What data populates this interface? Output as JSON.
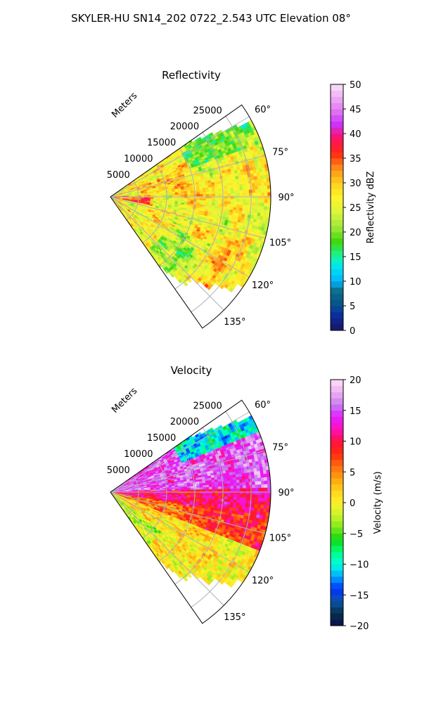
{
  "figure": {
    "suptitle": "SKYLER-HU  SN14_202  0722_2.543 UTC Elevation 08°"
  },
  "chart_data": [
    {
      "type": "heatmap",
      "subtype": "polar-sector",
      "title": "Reflectivity",
      "range_label": "Meters",
      "range_ticks": [
        "5000",
        "10000",
        "15000",
        "20000",
        "25000"
      ],
      "range_values": [
        5000,
        10000,
        15000,
        20000,
        25000
      ],
      "range_max": 28500,
      "azimuth_ticks": [
        "60°",
        "75°",
        "90°",
        "105°",
        "120°",
        "135°"
      ],
      "azimuth_values": [
        60,
        75,
        90,
        105,
        120,
        135
      ],
      "azimuth_range": [
        55,
        145
      ],
      "grid": true,
      "colorbar": {
        "label": "Reflectivity dBZ",
        "ticks": [
          "0",
          "5",
          "10",
          "15",
          "20",
          "25",
          "30",
          "35",
          "40",
          "45",
          "50"
        ],
        "range": [
          0,
          50
        ],
        "colormap": "NWSRef"
      },
      "field_description_values": {
        "mean": 28,
        "min_visible": 18,
        "max_visible": 38
      }
    },
    {
      "type": "heatmap",
      "subtype": "polar-sector",
      "title": "Velocity",
      "range_label": "Meters",
      "range_ticks": [
        "5000",
        "10000",
        "15000",
        "20000",
        "25000"
      ],
      "range_values": [
        5000,
        10000,
        15000,
        20000,
        25000
      ],
      "range_max": 28500,
      "azimuth_ticks": [
        "60°",
        "75°",
        "90°",
        "105°",
        "120°",
        "135°"
      ],
      "azimuth_values": [
        60,
        75,
        90,
        105,
        120,
        135
      ],
      "azimuth_range": [
        55,
        145
      ],
      "grid": true,
      "colorbar": {
        "label": "Velocity (m/s)",
        "ticks": [
          "20",
          "15",
          "10",
          "5",
          "0",
          "−5",
          "−10",
          "−15",
          "−20"
        ],
        "tick_values": [
          20,
          15,
          10,
          5,
          0,
          -5,
          -10,
          -15,
          -20
        ],
        "range": [
          -20,
          20
        ],
        "colormap": "NWSVel"
      },
      "field_description_values": {
        "north_sector_mean": 16,
        "center_mean": 10,
        "south_sector_mean": 2
      }
    }
  ]
}
